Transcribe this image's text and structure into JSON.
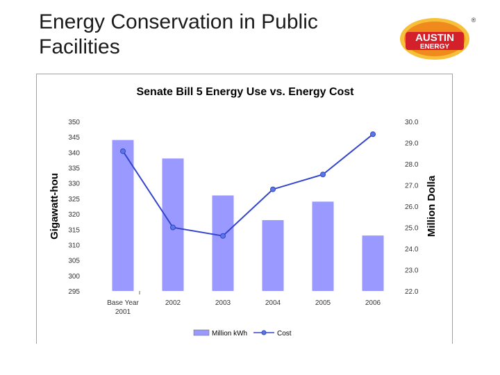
{
  "page": {
    "title": "Energy Conservation in Public Facilities"
  },
  "logo": {
    "line1": "AUSTIN",
    "line2": "ENERGY",
    "mark": "®",
    "colors": {
      "orange": "#f08a1c",
      "red": "#d4202a",
      "gold": "#f6c03a"
    }
  },
  "chart_data": {
    "type": "bar",
    "title": "Senate Bill 5 Energy Use vs. Energy Cost",
    "categories": [
      {
        "line1": "Base Year",
        "line2": "2001"
      },
      {
        "line1": "2002",
        "line2": ""
      },
      {
        "line1": "2003",
        "line2": ""
      },
      {
        "line1": "2004",
        "line2": ""
      },
      {
        "line1": "2005",
        "line2": ""
      },
      {
        "line1": "2006",
        "line2": ""
      }
    ],
    "series": [
      {
        "name": "Million kWh",
        "kind": "bar",
        "axis": "left",
        "color": "#9999ff",
        "values": [
          344,
          338,
          326,
          318,
          324,
          313
        ]
      },
      {
        "name": "Cost",
        "kind": "line",
        "axis": "right",
        "color": "#3344cc",
        "values": [
          28.6,
          25.0,
          24.6,
          26.8,
          27.5,
          29.4
        ]
      }
    ],
    "ylabel": "Gigawatt-hou",
    "ylabel_right": "Million Dolla",
    "ylim": [
      295,
      350
    ],
    "yticks": [
      "350",
      "345",
      "340",
      "335",
      "330",
      "325",
      "320",
      "315",
      "310",
      "305",
      "300",
      "295"
    ],
    "ylim_right": [
      22.0,
      30.0
    ],
    "yticks_right": [
      "30.0",
      "29.0",
      "28.0",
      "27.0",
      "26.0",
      "25.0",
      "24.0",
      "23.0",
      "22.0"
    ],
    "legend_position": "bottom",
    "grid": false
  }
}
